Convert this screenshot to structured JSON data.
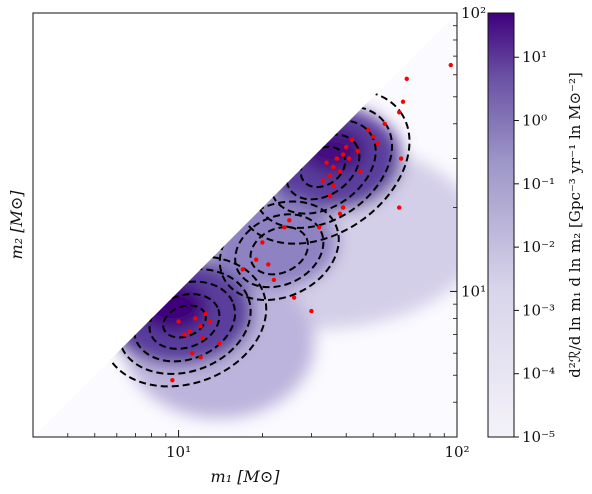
{
  "chart_data": {
    "type": "heatmap",
    "title": "",
    "xlabel": "m₁ [M⊙]",
    "ylabel": "m₂ [M⊙]",
    "xscale": "log",
    "yscale": "log",
    "xlim": [
      3,
      100
    ],
    "ylim": [
      3,
      100
    ],
    "x_ticks": [
      {
        "label": "10¹",
        "value": 10
      },
      {
        "label": "10²",
        "value": 100
      }
    ],
    "y_ticks": [
      {
        "label": "10¹",
        "value": 10
      },
      {
        "label": "10²",
        "value": 100
      }
    ],
    "colorbar": {
      "label": "d²ℛ/d ln m₁ d ln m₂ [Gpc⁻³ yr⁻¹ ln M⊙⁻²]",
      "scale": "log",
      "range": [
        1e-05,
        50
      ],
      "cmap_low": "#f4f2f9",
      "cmap_high": "#3f007d",
      "ticks": [
        {
          "label": "10¹",
          "value": 10
        },
        {
          "label": "10⁰",
          "value": 1
        },
        {
          "label": "10⁻¹",
          "value": 0.1
        },
        {
          "label": "10⁻²",
          "value": 0.01
        },
        {
          "label": "10⁻³",
          "value": 0.001
        },
        {
          "label": "10⁻⁴",
          "value": 0.0001
        },
        {
          "label": "10⁻⁵",
          "value": 1e-05
        }
      ]
    },
    "density_peaks": [
      {
        "m1": 10,
        "m2": 8.5,
        "amplitude": 1.0
      },
      {
        "m1": 35,
        "m2": 30,
        "amplitude": 0.85
      },
      {
        "m1": 22,
        "m2": 15,
        "amplitude": 0.45
      }
    ],
    "contour_style": "dashed black",
    "events": [
      {
        "m1": 10,
        "m2": 7.8
      },
      {
        "m1": 11,
        "m2": 7.2
      },
      {
        "m1": 11.5,
        "m2": 8.0
      },
      {
        "m1": 12,
        "m2": 7.5
      },
      {
        "m1": 12.5,
        "m2": 8.3
      },
      {
        "m1": 13,
        "m2": 7.8
      },
      {
        "m1": 11.2,
        "m2": 6.0
      },
      {
        "m1": 12,
        "m2": 5.8
      },
      {
        "m1": 14,
        "m2": 6.5
      },
      {
        "m1": 9.5,
        "m2": 4.8
      },
      {
        "m1": 10.5,
        "m2": 7.0
      },
      {
        "m1": 12.2,
        "m2": 6.8
      },
      {
        "m1": 17,
        "m2": 12
      },
      {
        "m1": 19,
        "m2": 13
      },
      {
        "m1": 20,
        "m2": 15
      },
      {
        "m1": 21,
        "m2": 12.5
      },
      {
        "m1": 22,
        "m2": 11
      },
      {
        "m1": 24,
        "m2": 17
      },
      {
        "m1": 25,
        "m2": 18
      },
      {
        "m1": 26,
        "m2": 9.5
      },
      {
        "m1": 30,
        "m2": 8.5
      },
      {
        "m1": 32,
        "m2": 17
      },
      {
        "m1": 33,
        "m2": 25
      },
      {
        "m1": 35,
        "m2": 26
      },
      {
        "m1": 36,
        "m2": 28
      },
      {
        "m1": 37,
        "m2": 30
      },
      {
        "m1": 38,
        "m2": 27
      },
      {
        "m1": 39,
        "m2": 31
      },
      {
        "m1": 40,
        "m2": 33
      },
      {
        "m1": 42,
        "m2": 35
      },
      {
        "m1": 44,
        "m2": 32
      },
      {
        "m1": 35,
        "m2": 22
      },
      {
        "m1": 36,
        "m2": 24
      },
      {
        "m1": 38,
        "m2": 19
      },
      {
        "m1": 39,
        "m2": 20
      },
      {
        "m1": 50,
        "m2": 36
      },
      {
        "m1": 55,
        "m2": 40
      },
      {
        "m1": 62,
        "m2": 44
      },
      {
        "m1": 64,
        "m2": 48
      },
      {
        "m1": 66,
        "m2": 58
      },
      {
        "m1": 62,
        "m2": 20
      },
      {
        "m1": 63,
        "m2": 30
      },
      {
        "m1": 45,
        "m2": 27
      },
      {
        "m1": 48,
        "m2": 38
      },
      {
        "m1": 52,
        "m2": 34
      },
      {
        "m1": 95,
        "m2": 65
      },
      {
        "m1": 34,
        "m2": 29
      },
      {
        "m1": 41,
        "m2": 30
      }
    ]
  }
}
